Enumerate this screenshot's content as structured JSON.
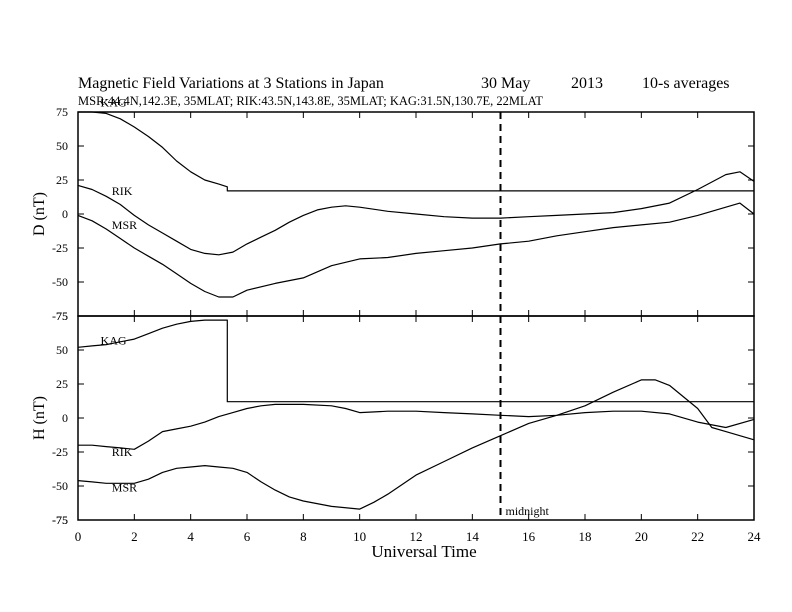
{
  "chart_data": {
    "title": "Magnetic Field Variations at 3 Stations in Japan",
    "date": "30 May",
    "year": "2013",
    "averaging": "10-s averages",
    "stations_line": "MSR:44.4N,142.3E, 35MLAT;   RIK:43.5N,143.8E, 35MLAT;   KAG:31.5N,130.7E, 22MLAT",
    "xlabel": "Universal Time",
    "xlim": [
      0,
      24
    ],
    "xticks": [
      0,
      2,
      4,
      6,
      8,
      10,
      12,
      14,
      16,
      18,
      20,
      22,
      24
    ],
    "midnight_ut": 15,
    "midnight_label": "midnight",
    "panels": [
      {
        "type": "line",
        "ylabel": "D (nT)",
        "ylim": [
          -75,
          75
        ],
        "yticks": [
          75,
          50,
          25,
          0,
          -25,
          -50,
          -75
        ],
        "series": [
          {
            "name": "KAG",
            "label_pos": [
              0.8,
              79
            ],
            "points": [
              [
                0,
                79
              ],
              [
                0.5,
                78
              ],
              [
                1,
                74
              ],
              [
                1.5,
                70
              ],
              [
                2,
                64
              ],
              [
                2.5,
                57
              ],
              [
                3,
                49
              ],
              [
                3.5,
                39
              ],
              [
                4,
                31
              ],
              [
                4.5,
                25
              ],
              [
                5,
                22
              ],
              [
                5.3,
                20
              ],
              [
                5.3,
                17
              ],
              [
                24,
                17
              ]
            ]
          },
          {
            "name": "RIK",
            "label_pos": [
              1.2,
              14
            ],
            "points": [
              [
                0,
                21
              ],
              [
                0.5,
                18
              ],
              [
                1,
                13
              ],
              [
                1.5,
                7
              ],
              [
                2,
                -1
              ],
              [
                2.5,
                -8
              ],
              [
                3,
                -14
              ],
              [
                3.5,
                -20
              ],
              [
                4,
                -26
              ],
              [
                4.5,
                -29
              ],
              [
                5,
                -30
              ],
              [
                5.5,
                -28
              ],
              [
                6,
                -22
              ],
              [
                6.5,
                -17
              ],
              [
                7,
                -12
              ],
              [
                7.5,
                -6
              ],
              [
                8,
                -1
              ],
              [
                8.5,
                3
              ],
              [
                9,
                5
              ],
              [
                9.5,
                6
              ],
              [
                10,
                5
              ],
              [
                11,
                2
              ],
              [
                12,
                0
              ],
              [
                13,
                -2
              ],
              [
                14,
                -3
              ],
              [
                15,
                -3
              ],
              [
                16,
                -2
              ],
              [
                17,
                -1
              ],
              [
                18,
                0
              ],
              [
                19,
                1
              ],
              [
                20,
                4
              ],
              [
                21,
                8
              ],
              [
                22,
                18
              ],
              [
                23,
                29
              ],
              [
                23.5,
                31
              ],
              [
                24,
                24
              ]
            ]
          },
          {
            "name": "MSR",
            "label_pos": [
              1.2,
              -11
            ],
            "points": [
              [
                0,
                -1
              ],
              [
                0.5,
                -5
              ],
              [
                1,
                -11
              ],
              [
                1.5,
                -18
              ],
              [
                2,
                -25
              ],
              [
                2.5,
                -31
              ],
              [
                3,
                -37
              ],
              [
                3.5,
                -44
              ],
              [
                4,
                -51
              ],
              [
                4.5,
                -57
              ],
              [
                5,
                -61
              ],
              [
                5.5,
                -61
              ],
              [
                6,
                -56
              ],
              [
                7,
                -51
              ],
              [
                8,
                -47
              ],
              [
                9,
                -38
              ],
              [
                10,
                -33
              ],
              [
                11,
                -32
              ],
              [
                12,
                -29
              ],
              [
                13,
                -27
              ],
              [
                14,
                -25
              ],
              [
                15,
                -22
              ],
              [
                16,
                -20
              ],
              [
                17,
                -16
              ],
              [
                18,
                -13
              ],
              [
                19,
                -10
              ],
              [
                20,
                -8
              ],
              [
                21,
                -6
              ],
              [
                22,
                -1
              ],
              [
                23,
                5
              ],
              [
                23.5,
                8
              ],
              [
                24,
                0
              ]
            ]
          }
        ]
      },
      {
        "type": "line",
        "ylabel": "H (nT)",
        "ylim": [
          -75,
          75
        ],
        "yticks": [
          75,
          50,
          25,
          0,
          -25,
          -50,
          -75
        ],
        "series": [
          {
            "name": "KAG",
            "label_pos": [
              0.8,
              54
            ],
            "points": [
              [
                0,
                52
              ],
              [
                0.5,
                53
              ],
              [
                1,
                54
              ],
              [
                1.5,
                56
              ],
              [
                2,
                58
              ],
              [
                2.5,
                62
              ],
              [
                3,
                66
              ],
              [
                3.5,
                69
              ],
              [
                4,
                71
              ],
              [
                4.5,
                72
              ],
              [
                5,
                72
              ],
              [
                5.3,
                72
              ],
              [
                5.3,
                12
              ],
              [
                24,
                12
              ]
            ]
          },
          {
            "name": "RIK",
            "label_pos": [
              1.2,
              -28
            ],
            "points": [
              [
                0,
                -20
              ],
              [
                0.5,
                -20
              ],
              [
                1,
                -21
              ],
              [
                1.5,
                -22
              ],
              [
                2,
                -23
              ],
              [
                2.5,
                -17
              ],
              [
                3,
                -10
              ],
              [
                3.5,
                -8
              ],
              [
                4,
                -6
              ],
              [
                4.5,
                -3
              ],
              [
                5,
                1
              ],
              [
                5.5,
                4
              ],
              [
                6,
                7
              ],
              [
                6.5,
                9
              ],
              [
                7,
                10
              ],
              [
                8,
                10
              ],
              [
                9,
                9
              ],
              [
                9.5,
                7
              ],
              [
                10,
                4
              ],
              [
                11,
                5
              ],
              [
                12,
                5
              ],
              [
                13,
                4
              ],
              [
                14,
                3
              ],
              [
                15,
                2
              ],
              [
                16,
                1
              ],
              [
                17,
                2
              ],
              [
                18,
                4
              ],
              [
                19,
                5
              ],
              [
                20,
                5
              ],
              [
                21,
                3
              ],
              [
                22,
                -3
              ],
              [
                23,
                -7
              ],
              [
                24,
                -1
              ]
            ]
          },
          {
            "name": "MSR",
            "label_pos": [
              1.2,
              -54
            ],
            "points": [
              [
                0,
                -46
              ],
              [
                0.5,
                -47
              ],
              [
                1,
                -48
              ],
              [
                1.5,
                -48
              ],
              [
                2,
                -48
              ],
              [
                2.5,
                -45
              ],
              [
                3,
                -40
              ],
              [
                3.5,
                -37
              ],
              [
                4,
                -36
              ],
              [
                4.5,
                -35
              ],
              [
                5,
                -36
              ],
              [
                5.5,
                -37
              ],
              [
                6,
                -40
              ],
              [
                6.5,
                -47
              ],
              [
                7,
                -53
              ],
              [
                7.5,
                -58
              ],
              [
                8,
                -61
              ],
              [
                9,
                -65
              ],
              [
                10,
                -67
              ],
              [
                10.5,
                -62
              ],
              [
                11,
                -56
              ],
              [
                12,
                -42
              ],
              [
                13,
                -32
              ],
              [
                14,
                -22
              ],
              [
                15,
                -13
              ],
              [
                16,
                -4
              ],
              [
                17,
                2
              ],
              [
                18,
                9
              ],
              [
                19,
                19
              ],
              [
                20,
                28
              ],
              [
                20.5,
                28
              ],
              [
                21,
                24
              ],
              [
                22,
                7
              ],
              [
                22.5,
                -7
              ],
              [
                23,
                -10
              ],
              [
                24,
                -16
              ]
            ]
          }
        ]
      }
    ]
  }
}
